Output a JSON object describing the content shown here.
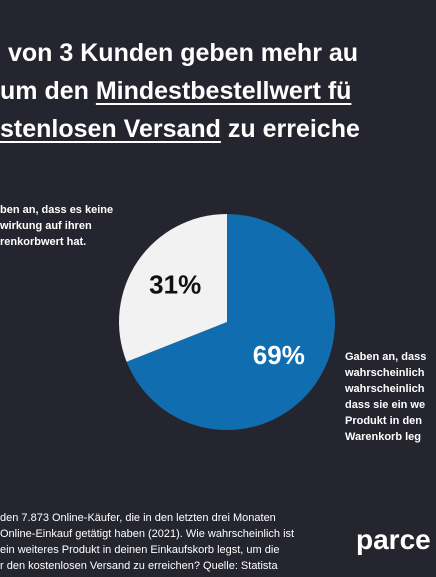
{
  "chart_data": {
    "type": "pie",
    "title_lines": [
      [
        {
          "text": "von 3 Kunden geben mehr au",
          "underline": false
        }
      ],
      [
        {
          "text": "um den ",
          "underline": false
        },
        {
          "text": "Mindestbestellwert fü",
          "underline": true
        }
      ],
      [
        {
          "text": "stenlosen Versand",
          "underline": true
        },
        {
          "text": " zu erreiche",
          "underline": false
        }
      ]
    ],
    "values": [
      69,
      31
    ],
    "value_labels": [
      "69%",
      "31%"
    ],
    "colors": [
      "#0f6db0",
      "#f2f2f2"
    ],
    "label_colors": [
      "#ffffff",
      "#111111"
    ],
    "annotations": [
      [
        "Gaben an, dass",
        "wahrscheinlich",
        "wahrscheinlich",
        "dass sie ein we",
        "Produkt in den",
        "Warenkorb leg"
      ],
      [
        "ben an, dass es keine",
        "wirkung auf ihren",
        "renkorbwert hat."
      ]
    ],
    "source_lines": [
      "den 7.873 Online-Käufer, die in den letzten drei Monaten",
      "Online-Einkauf getätigt haben (2021). Wie wahrscheinlich ist",
      "ein weiteres Produkt in deinen Einkaufskorb legst, um die",
      "r den kostenlosen Versand zu erreichen? Quelle: Statista"
    ],
    "brand": "parce"
  }
}
